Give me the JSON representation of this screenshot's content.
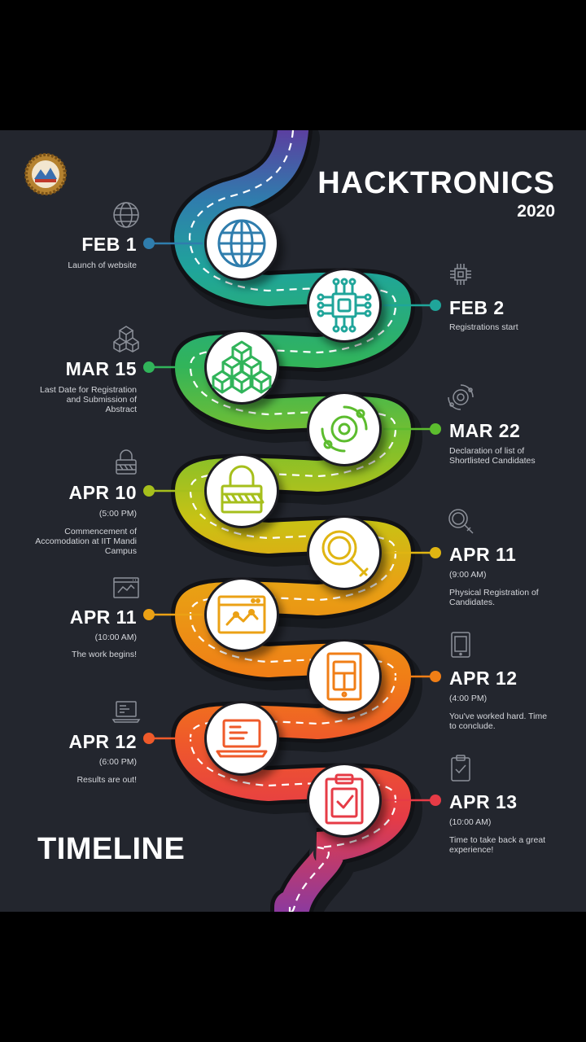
{
  "header": {
    "title": "HACKTRONICS",
    "year": "2020"
  },
  "footer": {
    "label": "TIMELINE"
  },
  "colors": {
    "background": "#23262e",
    "stops": [
      "#5b3fa0",
      "#2f7dad",
      "#1fa59a",
      "#31b45a",
      "#7cc02c",
      "#c9c214",
      "#e8a214",
      "#f07e16",
      "#ef5a2a",
      "#e63b46",
      "#8c3a9e"
    ]
  },
  "events": [
    {
      "date": "FEB 1",
      "time": "",
      "desc": [
        "Launch of website"
      ],
      "icon": "globe-icon",
      "color": "#2f7dad"
    },
    {
      "date": "FEB 2",
      "time": "",
      "desc": [
        "Registrations start"
      ],
      "icon": "chip-icon",
      "color": "#1fa59a"
    },
    {
      "date": "MAR 15",
      "time": "",
      "desc": [
        "Last Date for Registration",
        "and Submission of",
        "Abstract"
      ],
      "icon": "blocks-icon",
      "color": "#31b45a"
    },
    {
      "date": "MAR 22",
      "time": "",
      "desc": [
        "Declaration of list of",
        "Shortlisted Candidates"
      ],
      "icon": "orbit-icon",
      "color": "#5cbc2e"
    },
    {
      "date": "APR 10",
      "time": "(5:00 PM)",
      "desc": [
        "Commencement of",
        "Accomodation at IIT Mandi",
        "Campus"
      ],
      "icon": "padlock-icon",
      "color": "#a6bf1c"
    },
    {
      "date": "APR 11",
      "time": "(9:00 AM)",
      "desc": [
        "Physical Registration of",
        "Candidates."
      ],
      "icon": "magnifier-icon",
      "color": "#e0b512"
    },
    {
      "date": "APR 11",
      "time": "(10:00 AM)",
      "desc": [
        "The work begins!"
      ],
      "icon": "chart-window-icon",
      "color": "#eba115"
    },
    {
      "date": "APR 12",
      "time": "(4:00 PM)",
      "desc": [
        "You've worked hard. Time",
        "to conclude."
      ],
      "icon": "tablet-icon",
      "color": "#f07e16"
    },
    {
      "date": "APR 12",
      "time": "(6:00 PM)",
      "desc": [
        "Results are out!"
      ],
      "icon": "laptop-icon",
      "color": "#ef5a2a"
    },
    {
      "date": "APR 13",
      "time": "(10:00 AM)",
      "desc": [
        "Time to take back a great",
        "experience!"
      ],
      "icon": "clipboard-check-icon",
      "color": "#e63b46"
    }
  ]
}
